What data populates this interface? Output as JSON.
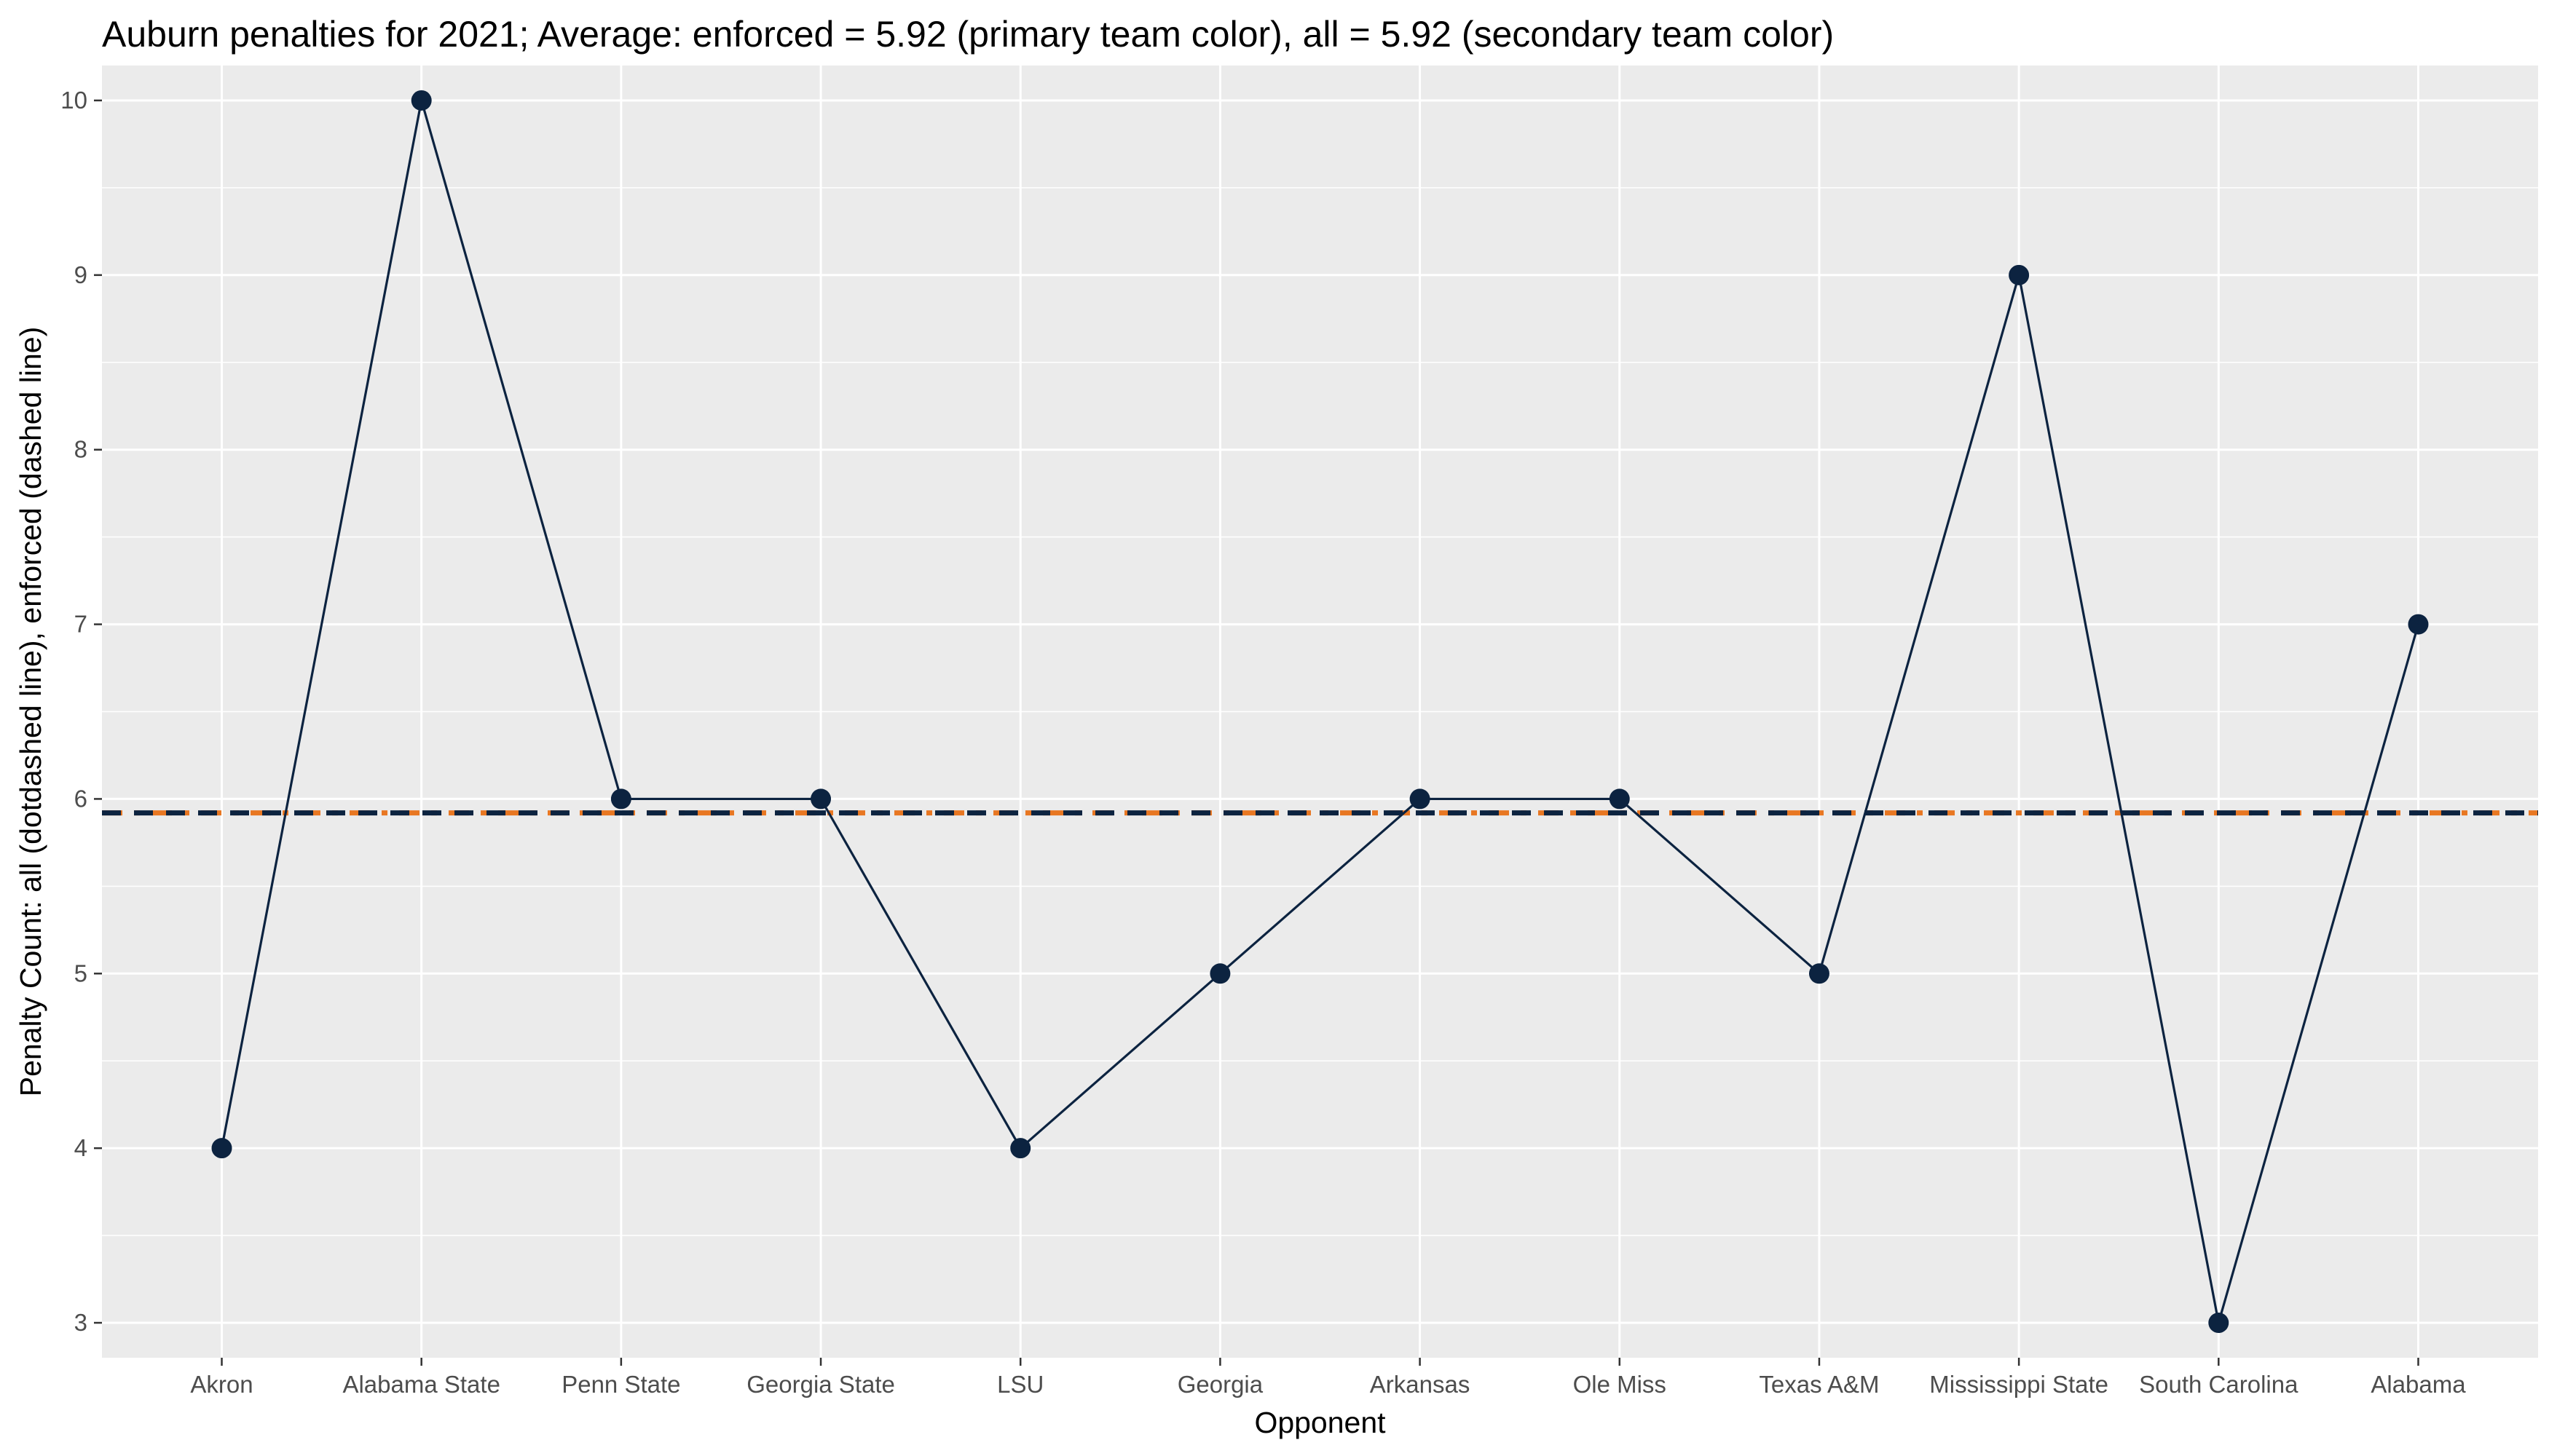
{
  "chart_data": {
    "type": "line",
    "title": "Auburn penalties for 2021; Average: enforced = 5.92 (primary team color), all = 5.92 (secondary team color)",
    "xlabel": "Opponent",
    "ylabel": "Penalty Count: all (dotdashed line), enforced (dashed line)",
    "categories": [
      "Akron",
      "Alabama State",
      "Penn State",
      "Georgia State",
      "LSU",
      "Georgia",
      "Arkansas",
      "Ole Miss",
      "Texas A&M",
      "Mississippi State",
      "South Carolina",
      "Alabama"
    ],
    "series": [
      {
        "values": [
          4,
          10,
          6,
          6,
          4,
          5,
          6,
          6,
          5,
          9,
          3,
          7
        ]
      }
    ],
    "ylim": [
      2.8,
      10.2
    ],
    "yticks": [
      3,
      4,
      5,
      6,
      7,
      8,
      9,
      10
    ],
    "reference_lines": [
      {
        "y": 5.92,
        "style": "dotdash",
        "color": "#E87722"
      },
      {
        "y": 5.92,
        "style": "dashed",
        "color": "#0C2340"
      }
    ],
    "colors": {
      "panel": "#EBEBEB",
      "grid": "#FFFFFF",
      "line": "#0C2340",
      "point": "#0C2340",
      "axis_text": "#4D4D4D"
    },
    "grid": true,
    "legend": "none"
  }
}
